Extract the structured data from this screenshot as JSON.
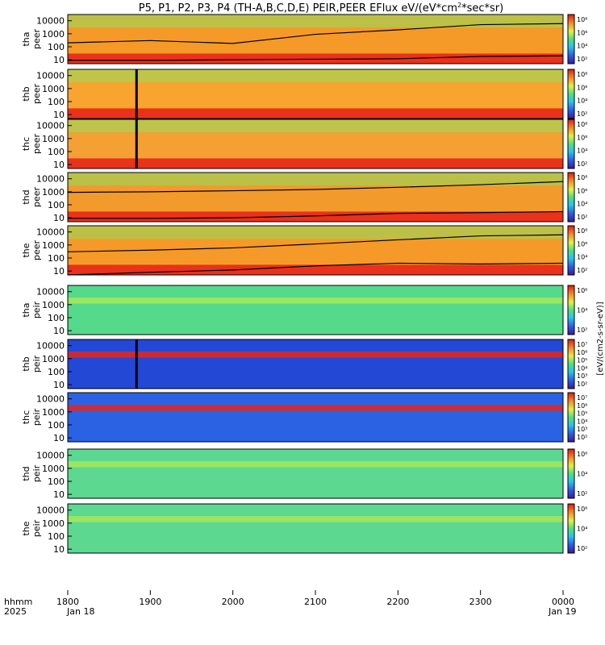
{
  "chart_data": {
    "type": "heatmap",
    "title": "P5, P1, P2, P3, P4 (TH-A,B,C,D,E) PEIR,PEER EFlux eV/(eV*cm²*sec*sr)",
    "title_parts": {
      "main": "P5, P1, P2, P3, P4 (TH-A,B,C,D,E) PEIR,PEER EFlux eV/(eV*cm",
      "exp": "2",
      "rest": "*sec*sr)"
    },
    "colorbar_title": "[eV/(cm2-s-sr-eV)]",
    "x_axis": {
      "range_label": [
        "1800",
        "0000"
      ],
      "ticks": [
        "1800",
        "1900",
        "2000",
        "2100",
        "2200",
        "2300",
        "0000"
      ],
      "date_labels": [
        "Jan 18",
        "Jan 19"
      ],
      "row_labels": [
        "hhmm",
        "2025"
      ]
    },
    "y_axis": {
      "scale": "log",
      "ylim": [
        5,
        30000
      ],
      "ticks": [
        "10",
        "100",
        "1000",
        "10000"
      ]
    },
    "colormap": [
      "#3a1a9a",
      "#2a5fe8",
      "#25c4f0",
      "#4fe07e",
      "#e4f040",
      "#f58a24",
      "#e01a12"
    ],
    "panels": [
      {
        "id": "tha_peer",
        "l1": "tha",
        "l2": "peer",
        "species": "electron",
        "cbar_ticks": [
          "10²",
          "10⁴",
          "10⁶",
          "10⁸"
        ],
        "bg": "#f59a28",
        "low_flux_energy": [
          200,
          300,
          180,
          900,
          2000,
          5000,
          6000
        ],
        "lower_cutoff": [
          9,
          9,
          10,
          11,
          12,
          18,
          20
        ],
        "data_gaps": []
      },
      {
        "id": "thb_peer",
        "l1": "thb",
        "l2": "peer",
        "species": "electron",
        "cbar_ticks": [
          "10²",
          "10⁴",
          "10⁶",
          "10⁸"
        ],
        "bg": "#f9a42e",
        "low_flux_energy": [],
        "lower_cutoff": [],
        "data_gaps": [
          {
            "time": "1850",
            "color": "#000000"
          }
        ]
      },
      {
        "id": "thc_peer",
        "l1": "thc",
        "l2": "peer",
        "species": "electron",
        "cbar_ticks": [
          "10²",
          "10⁴",
          "10⁶",
          "10⁸"
        ],
        "bg": "#f5a032",
        "low_flux_energy": [],
        "lower_cutoff": [],
        "data_gaps": [
          {
            "time": "1850",
            "color": "#000000"
          }
        ]
      },
      {
        "id": "thd_peer",
        "l1": "thd",
        "l2": "peer",
        "species": "electron",
        "cbar_ticks": [
          "10²",
          "10⁴",
          "10⁶",
          "10⁸"
        ],
        "bg": "#f29a2c",
        "low_flux_energy": [
          900,
          1000,
          1200,
          1500,
          2200,
          3500,
          6000
        ],
        "lower_cutoff": [
          9,
          9,
          10,
          14,
          22,
          25,
          30
        ],
        "data_gaps": []
      },
      {
        "id": "the_peer",
        "l1": "the",
        "l2": "peer",
        "species": "electron",
        "cbar_ticks": [
          "10²",
          "10⁴",
          "10⁶",
          "10⁸"
        ],
        "bg": "#f59a28",
        "low_flux_energy": [
          300,
          400,
          600,
          1200,
          2500,
          5000,
          6000
        ],
        "lower_cutoff": [
          5,
          8,
          12,
          25,
          40,
          35,
          40
        ],
        "data_gaps": []
      },
      {
        "id": "tha_peir",
        "l1": "tha",
        "l2": "peir",
        "species": "ion",
        "cbar_ticks": [
          "10²",
          "10⁴",
          "10⁶"
        ],
        "bg": "#55d98a",
        "low_flux_energy": [],
        "lower_cutoff": [],
        "data_gaps": []
      },
      {
        "id": "thb_peir",
        "l1": "thb",
        "l2": "peir",
        "species": "ion",
        "cbar_ticks": [
          "10²",
          "10³",
          "10⁴",
          "10⁵",
          "10⁶",
          "10⁷"
        ],
        "bg": "#2448d6",
        "low_flux_energy": [],
        "lower_cutoff": [],
        "data_gaps": [
          {
            "time": "1850",
            "color": "#000000"
          }
        ]
      },
      {
        "id": "thc_peir",
        "l1": "thc",
        "l2": "peir",
        "species": "ion",
        "cbar_ticks": [
          "10²",
          "10³",
          "10⁴",
          "10⁵",
          "10⁶",
          "10⁷"
        ],
        "bg": "#2b62e3",
        "low_flux_energy": [],
        "lower_cutoff": [],
        "data_gaps": []
      },
      {
        "id": "thd_peir",
        "l1": "thd",
        "l2": "peir",
        "species": "ion",
        "cbar_ticks": [
          "10²",
          "10⁴",
          "10⁶"
        ],
        "bg": "#5cd890",
        "low_flux_energy": [],
        "lower_cutoff": [],
        "data_gaps": []
      },
      {
        "id": "the_peir",
        "l1": "the",
        "l2": "peir",
        "species": "ion",
        "cbar_ticks": [
          "10²",
          "10⁴",
          "10⁶"
        ],
        "bg": "#5cd890",
        "low_flux_energy": [],
        "lower_cutoff": [],
        "data_gaps": []
      }
    ]
  }
}
